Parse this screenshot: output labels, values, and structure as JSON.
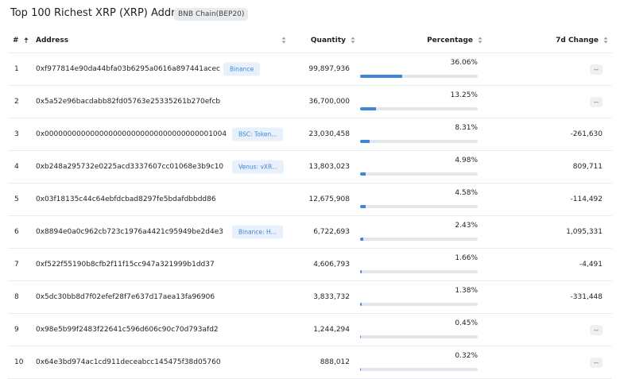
{
  "header": {
    "title": "Top 100 Richest XRP (XRP) Addresses",
    "badge": "BNB Chain(BEP20)"
  },
  "table": {
    "columns": [
      "#",
      "Address",
      "Quantity",
      "Percentage",
      "7d Change"
    ],
    "rows": [
      [
        "1",
        "0xf977814e90da44bfa03b6295a0616a897441acec",
        "Binance",
        "99,897,936",
        "36.06%",
        "--"
      ],
      [
        "2",
        "0x5a52e96bacdabb82fd05763e25335261b270efcb",
        null,
        "36,700,000",
        "13.25%",
        "--"
      ],
      [
        "3",
        "0x0000000000000000000000000000000000001004",
        "BSC: Token...",
        "23,030,458",
        "8.31%",
        "-261,630"
      ],
      [
        "4",
        "0xb248a295732e0225acd3337607cc01068e3b9c10",
        "Venus: vXR...",
        "13,803,023",
        "4.98%",
        "809,711"
      ],
      [
        "5",
        "0x03f18135c44c64ebfdcbad8297fe5bdafdbbdd86",
        null,
        "12,675,908",
        "4.58%",
        "-114,492"
      ],
      [
        "6",
        "0x8894e0a0c962cb723c1976a4421c95949be2d4e3",
        "Binance: H...",
        "6,722,693",
        "2.43%",
        "1,095,331"
      ],
      [
        "7",
        "0xf522f55190b8cfb2f11f15cc947a321999b1dd37",
        null,
        "4,606,793",
        "1.66%",
        "-4,491"
      ],
      [
        "8",
        "0x5dc30bb8d7f02efef28f7e637d17aea13fa96906",
        null,
        "3,833,732",
        "1.38%",
        "-331,448"
      ],
      [
        "9",
        "0x98e5b99f2483f22641c596d606c90c70d793afd2",
        null,
        "1,244,294",
        "0.45%",
        "--"
      ],
      [
        "10",
        "0x64e3bd974ac1cd911deceabcc145475f38d05760",
        null,
        "888,012",
        "0.32%",
        "--"
      ]
    ]
  }
}
